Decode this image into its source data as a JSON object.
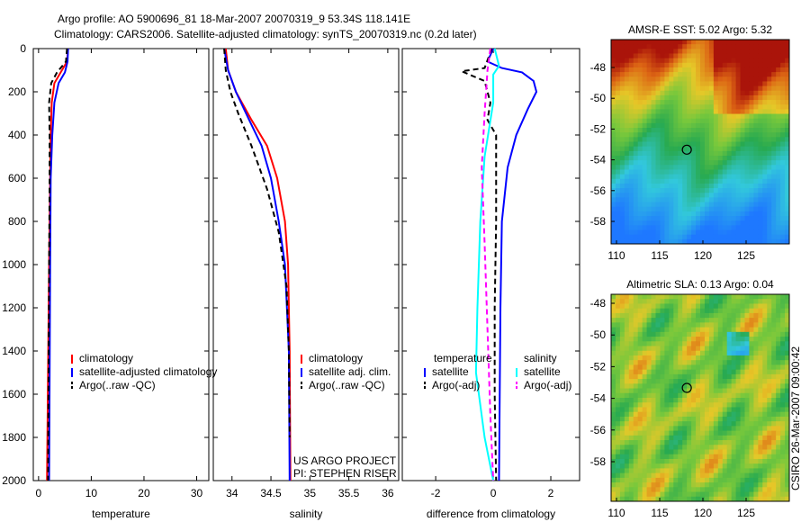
{
  "chart_data": [
    {
      "type": "line",
      "name": "temperature-panel",
      "xlabel": "temperature",
      "ylabel": "depth",
      "xlim": [
        -1,
        32.3
      ],
      "ylim": [
        0,
        2000
      ],
      "xticks": [
        0,
        10,
        20,
        30
      ],
      "yticks": [
        0,
        200,
        400,
        600,
        800,
        1000,
        1200,
        1400,
        1600,
        1800,
        2000
      ],
      "legend": [
        "climatology",
        "satellite-adjusted climatology",
        "Argo(..raw -QC)"
      ],
      "series": [
        {
          "name": "climatology",
          "color": "#ff0000",
          "dash": "",
          "points": [
            [
              5.6,
              0
            ],
            [
              5.4,
              60
            ],
            [
              4.2,
              110
            ],
            [
              3.0,
              160
            ],
            [
              2.5,
              250
            ],
            [
              2.3,
              400
            ],
            [
              2.2,
              600
            ],
            [
              2.0,
              1000
            ],
            [
              1.8,
              1500
            ],
            [
              1.6,
              2000
            ]
          ]
        },
        {
          "name": "satellite-adjusted climatology",
          "color": "#0000ff",
          "dash": "",
          "points": [
            [
              5.6,
              0
            ],
            [
              5.5,
              60
            ],
            [
              5.0,
              110
            ],
            [
              3.8,
              160
            ],
            [
              3.0,
              250
            ],
            [
              2.6,
              400
            ],
            [
              2.3,
              600
            ],
            [
              2.2,
              1000
            ],
            [
              2.1,
              1500
            ],
            [
              2.0,
              2000
            ]
          ]
        },
        {
          "name": "Argo(..raw -QC)",
          "color": "#000000",
          "dash": "6,4",
          "points": [
            [
              5.4,
              0
            ],
            [
              5.2,
              60
            ],
            [
              3.5,
              110
            ],
            [
              2.4,
              160
            ],
            [
              2.0,
              250
            ],
            [
              2.1,
              400
            ],
            [
              2.1,
              600
            ],
            [
              2.0,
              1000
            ],
            [
              1.9,
              1500
            ],
            [
              1.8,
              2000
            ]
          ]
        }
      ]
    },
    {
      "type": "line",
      "name": "salinity-panel",
      "xlabel": "salinity",
      "xlim": [
        33.76,
        36.14
      ],
      "ylim": [
        0,
        2000
      ],
      "xticks": [
        34,
        34.5,
        35,
        35.5,
        36
      ],
      "yticks": [
        0,
        200,
        400,
        600,
        800,
        1000,
        1200,
        1400,
        1600,
        1800,
        2000
      ],
      "legend": [
        "climatology",
        "satellite adj. clim.",
        "Argo(..raw -QC)"
      ],
      "annotations": [
        "US ARGO PROJECT",
        "PI: STEPHEN RISER"
      ],
      "series": [
        {
          "name": "climatology",
          "color": "#ff0000",
          "dash": "",
          "points": [
            [
              33.92,
              0
            ],
            [
              33.95,
              100
            ],
            [
              34.05,
              200
            ],
            [
              34.25,
              330
            ],
            [
              34.45,
              450
            ],
            [
              34.58,
              600
            ],
            [
              34.68,
              800
            ],
            [
              34.72,
              1000
            ],
            [
              34.74,
              1400
            ],
            [
              34.75,
              2000
            ]
          ]
        },
        {
          "name": "satellite adj. clim.",
          "color": "#0000ff",
          "dash": "",
          "points": [
            [
              33.9,
              0
            ],
            [
              33.95,
              100
            ],
            [
              34.05,
              200
            ],
            [
              34.22,
              330
            ],
            [
              34.38,
              450
            ],
            [
              34.5,
              600
            ],
            [
              34.6,
              800
            ],
            [
              34.68,
              1000
            ],
            [
              34.73,
              1400
            ],
            [
              34.74,
              2000
            ]
          ]
        },
        {
          "name": "Argo(..raw -QC)",
          "color": "#000000",
          "dash": "6,4",
          "points": [
            [
              33.9,
              0
            ],
            [
              33.92,
              100
            ],
            [
              33.98,
              200
            ],
            [
              34.08,
              300
            ],
            [
              34.25,
              450
            ],
            [
              34.45,
              650
            ],
            [
              34.6,
              850
            ],
            [
              34.7,
              1100
            ],
            [
              34.73,
              1400
            ],
            [
              34.74,
              1800
            ]
          ]
        }
      ]
    },
    {
      "type": "line",
      "name": "difference-panel",
      "xlabel": "difference from climatology",
      "xlim": [
        -3.16,
        3.0
      ],
      "ylim": [
        0,
        2000
      ],
      "xticks": [
        -2,
        0,
        2
      ],
      "yticks": [
        0,
        200,
        400,
        600,
        800,
        1000,
        1200,
        1400,
        1600,
        1800,
        2000
      ],
      "legend_headers": [
        "temperature",
        "salinity"
      ],
      "legend": [
        "satellite",
        "Argo(-adj)",
        "satellite",
        "Argo(-adj)"
      ],
      "series": [
        {
          "name": "temperature satellite",
          "color": "#0000ff",
          "dash": "",
          "points": [
            [
              0,
              0
            ],
            [
              -0.2,
              60
            ],
            [
              0.3,
              90
            ],
            [
              1.0,
              110
            ],
            [
              1.4,
              150
            ],
            [
              1.5,
              200
            ],
            [
              1.2,
              280
            ],
            [
              0.8,
              400
            ],
            [
              0.5,
              550
            ],
            [
              0.3,
              800
            ],
            [
              0.25,
              1200
            ],
            [
              0.2,
              2000
            ]
          ]
        },
        {
          "name": "temperature Argo(-adj)",
          "color": "#000000",
          "dash": "6,4",
          "points": [
            [
              -0.05,
              0
            ],
            [
              -0.3,
              90
            ],
            [
              -1.1,
              105
            ],
            [
              -0.3,
              150
            ],
            [
              -0.1,
              250
            ],
            [
              -0.2,
              330
            ],
            [
              0.1,
              400
            ],
            [
              0.1,
              800
            ],
            [
              0.05,
              1200
            ],
            [
              0.05,
              1600
            ],
            [
              0.1,
              2000
            ]
          ]
        },
        {
          "name": "salinity satellite",
          "color": "#00ffff",
          "dash": "",
          "points": [
            [
              0.05,
              0
            ],
            [
              0.2,
              80
            ],
            [
              0.0,
              120
            ],
            [
              0.0,
              250
            ],
            [
              -0.3,
              500
            ],
            [
              -0.45,
              800
            ],
            [
              -0.55,
              1200
            ],
            [
              -0.6,
              1500
            ],
            [
              -0.3,
              1800
            ],
            [
              0,
              2000
            ]
          ]
        },
        {
          "name": "salinity Argo(-adj)",
          "color": "#ff00ff",
          "dash": "6,4",
          "points": [
            [
              -0.1,
              0
            ],
            [
              -0.2,
              100
            ],
            [
              -0.3,
              300
            ],
            [
              -0.4,
              550
            ],
            [
              -0.3,
              900
            ],
            [
              -0.2,
              1300
            ],
            [
              -0.1,
              1700
            ],
            [
              0,
              2000
            ]
          ]
        }
      ]
    }
  ],
  "title_line1": "Argo profile: AO 5900696_81 18-Mar-2007 20070319_9 53.34S 118.141E",
  "title_line2": "Climatology: CARS2006. Satellite-adjusted climatology: synTS_20070319.nc (0.2d later)",
  "maps": [
    {
      "title": "AMSR-E SST: 5.02 Argo: 5.32",
      "lon_ticks": [
        "110",
        "115",
        "120",
        "125"
      ],
      "lat_ticks": [
        "-48",
        "-50",
        "-52",
        "-54",
        "-56",
        "-58"
      ],
      "marker": [
        118.14,
        -53.34
      ],
      "kind": "sst"
    },
    {
      "title": "Altimetric SLA: 0.13 Argo: 0.04",
      "lon_ticks": [
        "110",
        "115",
        "120",
        "125"
      ],
      "lat_ticks": [
        "-48",
        "-50",
        "-52",
        "-54",
        "-56",
        "-58"
      ],
      "marker": [
        118.14,
        -53.34
      ],
      "kind": "sla"
    }
  ],
  "side_label": "CSIRO 26-Mar-2007 09:00:42"
}
